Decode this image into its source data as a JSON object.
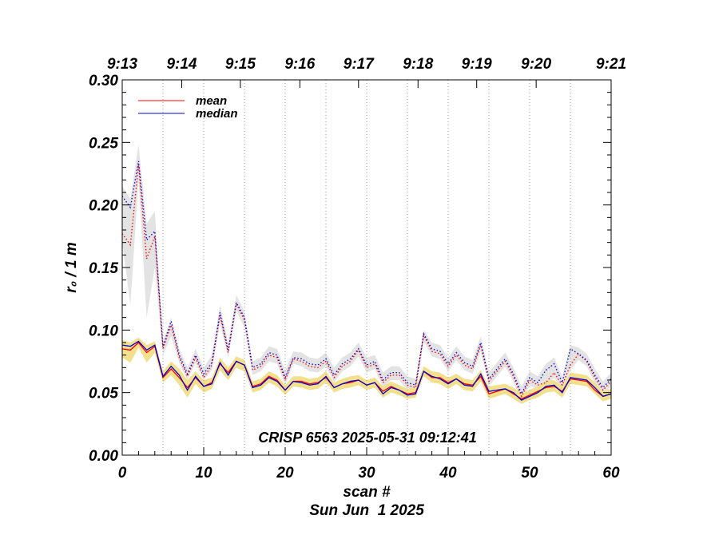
{
  "chart_data": {
    "type": "line",
    "xlabel": "scan #",
    "ylabel": "r₀ / 1 m",
    "date": "Sun Jun  1 2025",
    "annotation": "CRISP 6563 2025-05-31 09:12:41",
    "xlim": [
      0,
      60
    ],
    "ylim": [
      0,
      0.3
    ],
    "x_ticks": [
      0,
      10,
      20,
      30,
      40,
      50,
      60
    ],
    "x_tick_labels": [
      "0",
      "10",
      "20",
      "30",
      "40",
      "50",
      "60"
    ],
    "y_ticks": [
      0,
      0.05,
      0.1,
      0.15,
      0.2,
      0.25,
      0.3
    ],
    "y_tick_labels": [
      "0.00",
      "0.05",
      "0.10",
      "0.15",
      "0.20",
      "0.25",
      "0.30"
    ],
    "time_axis": [
      {
        "x": 0,
        "label": "9:13"
      },
      {
        "x": 7.3,
        "label": "9:14"
      },
      {
        "x": 14.5,
        "label": "9:15"
      },
      {
        "x": 21.8,
        "label": "9:16"
      },
      {
        "x": 29.0,
        "label": "9:17"
      },
      {
        "x": 36.3,
        "label": "9:18"
      },
      {
        "x": 43.5,
        "label": "9:19"
      },
      {
        "x": 50.8,
        "label": "9:20"
      },
      {
        "x": 60,
        "label": "9:21"
      }
    ],
    "vertical_gridlines_x": [
      5,
      10,
      15,
      20,
      25,
      30,
      35,
      40,
      45,
      50,
      55
    ],
    "legend": [
      {
        "name": "mean",
        "color": "#ff0000"
      },
      {
        "name": "median",
        "color": "#0000cc"
      }
    ],
    "legend_position": "top-left",
    "colors": {
      "mean": "#ff0000",
      "median": "#0000cc",
      "upper_band": "#e3e3e3",
      "lower_band": "#f2e08c"
    },
    "series": [
      {
        "name": "upper mean",
        "style": "dotted",
        "color": "#ff0000",
        "values": [
          0.177,
          0.168,
          0.232,
          0.157,
          0.175,
          0.085,
          0.104,
          0.078,
          0.063,
          0.078,
          0.062,
          0.072,
          0.112,
          0.082,
          0.121,
          0.108,
          0.068,
          0.071,
          0.08,
          0.078,
          0.06,
          0.077,
          0.075,
          0.071,
          0.07,
          0.075,
          0.062,
          0.071,
          0.075,
          0.084,
          0.07,
          0.073,
          0.058,
          0.064,
          0.064,
          0.056,
          0.054,
          0.096,
          0.083,
          0.081,
          0.071,
          0.08,
          0.072,
          0.069,
          0.088,
          0.059,
          0.067,
          0.075,
          0.063,
          0.047,
          0.06,
          0.056,
          0.058,
          0.066,
          0.056,
          0.072,
          0.081,
          0.075,
          0.062,
          0.052,
          0.059
        ]
      },
      {
        "name": "upper median",
        "style": "dotted",
        "color": "#0000cc",
        "values": [
          0.207,
          0.198,
          0.235,
          0.172,
          0.179,
          0.087,
          0.107,
          0.08,
          0.065,
          0.08,
          0.065,
          0.074,
          0.114,
          0.084,
          0.122,
          0.11,
          0.07,
          0.073,
          0.082,
          0.08,
          0.062,
          0.078,
          0.077,
          0.073,
          0.072,
          0.077,
          0.064,
          0.073,
          0.077,
          0.085,
          0.072,
          0.075,
          0.06,
          0.066,
          0.066,
          0.058,
          0.056,
          0.097,
          0.085,
          0.083,
          0.073,
          0.082,
          0.074,
          0.071,
          0.09,
          0.061,
          0.069,
          0.077,
          0.065,
          0.049,
          0.062,
          0.058,
          0.068,
          0.073,
          0.058,
          0.085,
          0.081,
          0.076,
          0.064,
          0.054,
          0.061
        ]
      },
      {
        "name": "mean",
        "style": "solid",
        "color": "#ff0000",
        "values": [
          0.085,
          0.084,
          0.09,
          0.082,
          0.087,
          0.062,
          0.069,
          0.062,
          0.054,
          0.062,
          0.055,
          0.058,
          0.073,
          0.066,
          0.075,
          0.072,
          0.055,
          0.057,
          0.063,
          0.06,
          0.052,
          0.059,
          0.059,
          0.057,
          0.058,
          0.062,
          0.054,
          0.057,
          0.058,
          0.06,
          0.056,
          0.058,
          0.051,
          0.055,
          0.052,
          0.049,
          0.05,
          0.067,
          0.062,
          0.062,
          0.058,
          0.061,
          0.057,
          0.056,
          0.063,
          0.049,
          0.051,
          0.053,
          0.049,
          0.045,
          0.048,
          0.051,
          0.054,
          0.055,
          0.051,
          0.061,
          0.06,
          0.059,
          0.052,
          0.047,
          0.049
        ]
      },
      {
        "name": "median",
        "style": "solid",
        "color": "#0000cc",
        "values": [
          0.088,
          0.087,
          0.091,
          0.084,
          0.088,
          0.063,
          0.071,
          0.064,
          0.052,
          0.063,
          0.055,
          0.057,
          0.074,
          0.064,
          0.075,
          0.072,
          0.054,
          0.056,
          0.062,
          0.059,
          0.052,
          0.059,
          0.058,
          0.056,
          0.057,
          0.063,
          0.054,
          0.057,
          0.059,
          0.06,
          0.056,
          0.058,
          0.049,
          0.054,
          0.052,
          0.048,
          0.049,
          0.067,
          0.063,
          0.061,
          0.057,
          0.061,
          0.056,
          0.055,
          0.065,
          0.051,
          0.052,
          0.053,
          0.05,
          0.044,
          0.047,
          0.05,
          0.055,
          0.056,
          0.05,
          0.062,
          0.061,
          0.06,
          0.054,
          0.047,
          0.049
        ]
      }
    ],
    "bands": [
      {
        "name": "upper spread",
        "color": "#e3e3e3",
        "low": [
          0.17,
          0.12,
          0.22,
          0.11,
          0.15,
          0.08,
          0.095,
          0.074,
          0.06,
          0.074,
          0.06,
          0.068,
          0.105,
          0.078,
          0.115,
          0.102,
          0.064,
          0.067,
          0.075,
          0.073,
          0.056,
          0.073,
          0.071,
          0.067,
          0.066,
          0.071,
          0.058,
          0.067,
          0.071,
          0.079,
          0.066,
          0.069,
          0.054,
          0.06,
          0.06,
          0.052,
          0.05,
          0.091,
          0.079,
          0.077,
          0.067,
          0.076,
          0.068,
          0.065,
          0.083,
          0.055,
          0.063,
          0.071,
          0.059,
          0.043,
          0.056,
          0.052,
          0.054,
          0.062,
          0.052,
          0.068,
          0.076,
          0.071,
          0.058,
          0.048,
          0.055
        ],
        "high": [
          0.215,
          0.205,
          0.248,
          0.185,
          0.195,
          0.09,
          0.11,
          0.085,
          0.07,
          0.085,
          0.07,
          0.08,
          0.12,
          0.09,
          0.128,
          0.115,
          0.075,
          0.078,
          0.087,
          0.085,
          0.068,
          0.083,
          0.082,
          0.078,
          0.077,
          0.082,
          0.07,
          0.078,
          0.082,
          0.09,
          0.078,
          0.08,
          0.066,
          0.071,
          0.071,
          0.063,
          0.061,
          0.1,
          0.09,
          0.088,
          0.078,
          0.087,
          0.079,
          0.076,
          0.095,
          0.066,
          0.074,
          0.082,
          0.07,
          0.055,
          0.067,
          0.063,
          0.073,
          0.078,
          0.063,
          0.088,
          0.086,
          0.081,
          0.069,
          0.059,
          0.066
        ]
      },
      {
        "name": "lower spread",
        "color": "#f2e08c",
        "low": [
          0.078,
          0.074,
          0.086,
          0.074,
          0.082,
          0.058,
          0.064,
          0.056,
          0.046,
          0.057,
          0.05,
          0.053,
          0.068,
          0.06,
          0.07,
          0.067,
          0.05,
          0.052,
          0.058,
          0.055,
          0.048,
          0.055,
          0.054,
          0.052,
          0.053,
          0.058,
          0.05,
          0.053,
          0.054,
          0.056,
          0.052,
          0.054,
          0.046,
          0.05,
          0.048,
          0.045,
          0.046,
          0.063,
          0.058,
          0.057,
          0.053,
          0.057,
          0.052,
          0.051,
          0.059,
          0.045,
          0.047,
          0.049,
          0.045,
          0.041,
          0.044,
          0.046,
          0.05,
          0.051,
          0.046,
          0.057,
          0.056,
          0.055,
          0.049,
          0.043,
          0.045
        ],
        "high": [
          0.092,
          0.09,
          0.094,
          0.088,
          0.091,
          0.067,
          0.075,
          0.069,
          0.06,
          0.067,
          0.06,
          0.062,
          0.078,
          0.07,
          0.079,
          0.076,
          0.059,
          0.061,
          0.067,
          0.064,
          0.056,
          0.063,
          0.063,
          0.061,
          0.062,
          0.067,
          0.058,
          0.061,
          0.063,
          0.064,
          0.06,
          0.062,
          0.055,
          0.059,
          0.056,
          0.053,
          0.054,
          0.071,
          0.067,
          0.066,
          0.062,
          0.065,
          0.061,
          0.06,
          0.068,
          0.055,
          0.056,
          0.057,
          0.054,
          0.049,
          0.052,
          0.055,
          0.059,
          0.06,
          0.055,
          0.066,
          0.065,
          0.064,
          0.058,
          0.051,
          0.053
        ]
      }
    ]
  }
}
